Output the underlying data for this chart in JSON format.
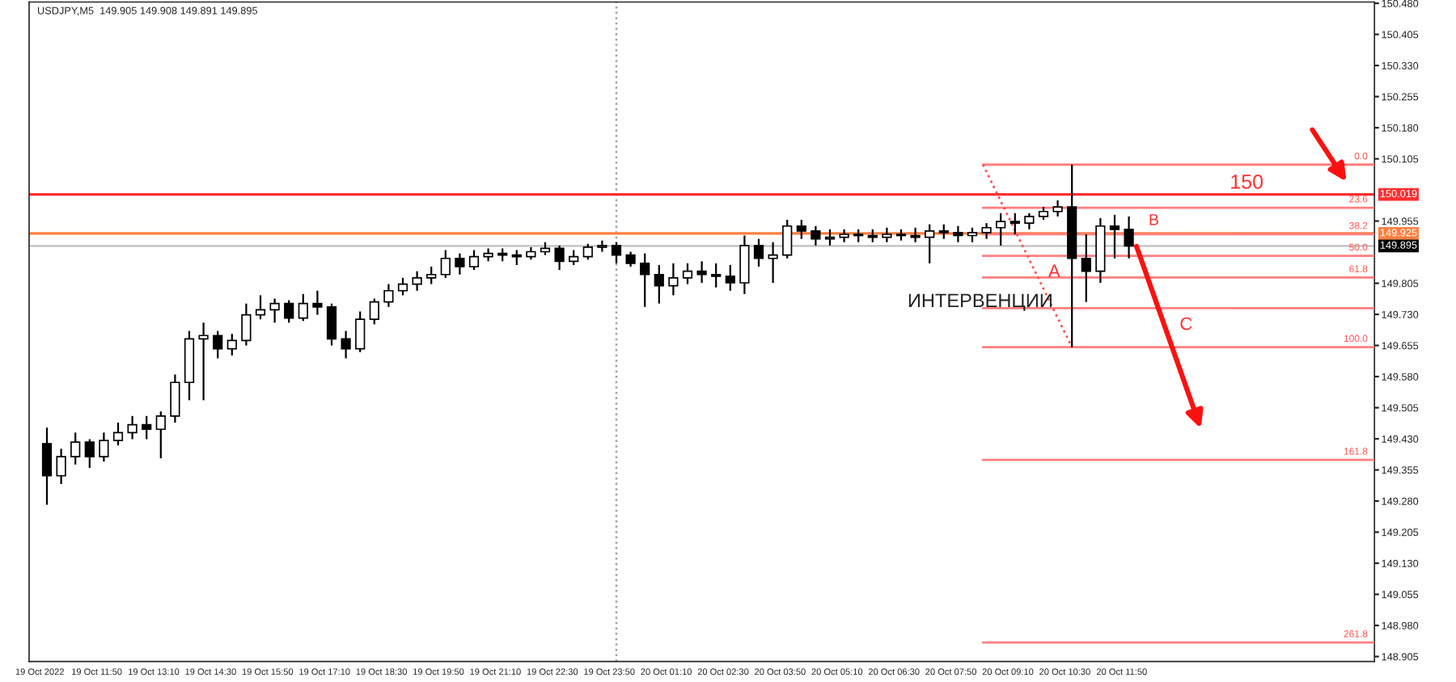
{
  "chart_data": {
    "type": "candlestick",
    "title": "USDJPY,M5  149.905 149.908 149.891 149.895",
    "color": "#000000",
    "x": [
      "2022-10-19T10:40",
      "2022-10-19T11:00",
      "2022-10-19T11:20",
      "2022-10-19T11:40",
      "2022-10-19T12:00",
      "2022-10-19T12:20",
      "2022-10-19T12:40",
      "2022-10-19T13:00",
      "2022-10-19T13:20",
      "2022-10-19T13:40",
      "2022-10-19T14:00",
      "2022-10-19T14:20",
      "2022-10-19T14:40",
      "2022-10-19T15:00",
      "2022-10-19T15:20",
      "2022-10-19T15:40",
      "2022-10-19T16:00",
      "2022-10-19T16:20",
      "2022-10-19T16:40",
      "2022-10-19T17:00",
      "2022-10-19T17:20",
      "2022-10-19T17:40",
      "2022-10-19T18:00",
      "2022-10-19T18:20",
      "2022-10-19T18:40",
      "2022-10-19T19:00",
      "2022-10-19T19:20",
      "2022-10-19T19:40",
      "2022-10-19T20:00",
      "2022-10-19T20:20",
      "2022-10-19T20:40",
      "2022-10-19T21:00",
      "2022-10-19T21:20",
      "2022-10-19T21:40",
      "2022-10-19T22:00",
      "2022-10-19T22:20",
      "2022-10-19T22:40",
      "2022-10-19T23:00",
      "2022-10-19T23:20",
      "2022-10-19T23:40",
      "2022-10-20T00:00",
      "2022-10-20T00:20",
      "2022-10-20T00:40",
      "2022-10-20T01:00",
      "2022-10-20T01:20",
      "2022-10-20T01:40",
      "2022-10-20T02:00",
      "2022-10-20T02:20",
      "2022-10-20T02:40",
      "2022-10-20T03:00",
      "2022-10-20T03:20",
      "2022-10-20T03:40",
      "2022-10-20T04:00",
      "2022-10-20T04:20",
      "2022-10-20T04:40",
      "2022-10-20T05:00",
      "2022-10-20T05:20",
      "2022-10-20T05:40",
      "2022-10-20T06:00",
      "2022-10-20T06:20",
      "2022-10-20T06:40",
      "2022-10-20T07:00",
      "2022-10-20T07:20",
      "2022-10-20T07:40",
      "2022-10-20T08:00",
      "2022-10-20T08:20",
      "2022-10-20T08:40",
      "2022-10-20T09:00",
      "2022-10-20T09:20",
      "2022-10-20T09:40",
      "2022-10-20T10:00",
      "2022-10-20T10:20",
      "2022-10-20T10:40",
      "2022-10-20T11:00",
      "2022-10-20T11:20",
      "2022-10-20T11:40",
      "2022-10-20T12:00"
    ],
    "ohlc": [
      [
        149.418,
        149.457,
        149.271,
        149.341
      ],
      [
        149.341,
        149.406,
        149.321,
        149.387
      ],
      [
        149.387,
        149.445,
        149.368,
        149.422
      ],
      [
        149.422,
        149.429,
        149.36,
        149.387
      ],
      [
        149.387,
        149.445,
        149.375,
        149.426
      ],
      [
        149.426,
        149.469,
        149.414,
        149.445
      ],
      [
        149.445,
        149.485,
        149.429,
        149.464
      ],
      [
        149.464,
        149.485,
        149.429,
        149.453
      ],
      [
        149.453,
        149.496,
        149.383,
        149.485
      ],
      [
        149.485,
        149.585,
        149.469,
        149.566
      ],
      [
        149.566,
        149.69,
        149.523,
        149.671
      ],
      [
        149.671,
        149.71,
        149.523,
        149.679
      ],
      [
        149.679,
        149.69,
        149.624,
        149.647
      ],
      [
        149.647,
        149.683,
        149.631,
        149.667
      ],
      [
        149.667,
        149.756,
        149.655,
        149.729
      ],
      [
        149.729,
        149.776,
        149.718,
        149.741
      ],
      [
        149.741,
        149.768,
        149.71,
        149.756
      ],
      [
        149.756,
        149.764,
        149.71,
        149.721
      ],
      [
        149.721,
        149.779,
        149.714,
        149.756
      ],
      [
        149.756,
        149.787,
        149.729,
        149.748
      ],
      [
        149.748,
        149.756,
        149.655,
        149.671
      ],
      [
        149.671,
        149.69,
        149.624,
        149.647
      ],
      [
        149.647,
        149.737,
        149.639,
        149.718
      ],
      [
        149.718,
        149.768,
        149.706,
        149.76
      ],
      [
        149.76,
        149.803,
        149.748,
        149.787
      ],
      [
        149.787,
        149.818,
        149.776,
        149.803
      ],
      [
        149.803,
        149.834,
        149.787,
        149.818
      ],
      [
        149.818,
        149.845,
        149.803,
        149.826
      ],
      [
        149.826,
        149.885,
        149.818,
        149.865
      ],
      [
        149.865,
        149.877,
        149.826,
        149.845
      ],
      [
        149.845,
        149.885,
        149.837,
        149.869
      ],
      [
        149.869,
        149.889,
        149.858,
        149.877
      ],
      [
        149.877,
        149.889,
        149.858,
        149.873
      ],
      [
        149.873,
        149.885,
        149.849,
        149.869
      ],
      [
        149.869,
        149.892,
        149.862,
        149.881
      ],
      [
        149.881,
        149.904,
        149.873,
        149.889
      ],
      [
        149.889,
        149.896,
        149.837,
        149.858
      ],
      [
        149.858,
        149.885,
        149.849,
        149.869
      ],
      [
        149.869,
        149.9,
        149.862,
        149.892
      ],
      [
        149.892,
        149.908,
        149.881,
        149.896
      ],
      [
        149.896,
        149.904,
        149.853,
        149.873
      ],
      [
        149.873,
        149.881,
        149.845,
        149.853
      ],
      [
        149.853,
        149.877,
        149.748,
        149.826
      ],
      [
        149.826,
        149.849,
        149.756,
        149.799
      ],
      [
        149.799,
        149.853,
        149.776,
        149.818
      ],
      [
        149.818,
        149.853,
        149.803,
        149.834
      ],
      [
        149.834,
        149.858,
        149.806,
        149.826
      ],
      [
        149.826,
        149.853,
        149.795,
        149.822
      ],
      [
        149.822,
        149.849,
        149.787,
        149.806
      ],
      [
        149.806,
        149.92,
        149.779,
        149.896
      ],
      [
        149.896,
        149.912,
        149.845,
        149.865
      ],
      [
        149.865,
        149.904,
        149.806,
        149.873
      ],
      [
        149.873,
        149.958,
        149.865,
        149.943
      ],
      [
        149.943,
        149.958,
        149.912,
        149.931
      ],
      [
        149.931,
        149.943,
        149.896,
        149.912
      ],
      [
        149.912,
        149.935,
        149.896,
        149.916
      ],
      [
        149.916,
        149.935,
        149.904,
        149.923
      ],
      [
        149.923,
        149.935,
        149.904,
        149.92
      ],
      [
        149.92,
        149.935,
        149.904,
        149.916
      ],
      [
        149.916,
        149.939,
        149.904,
        149.923
      ],
      [
        149.923,
        149.935,
        149.908,
        149.92
      ],
      [
        149.92,
        149.939,
        149.904,
        149.916
      ],
      [
        149.916,
        149.947,
        149.853,
        149.931
      ],
      [
        149.931,
        149.947,
        149.912,
        149.927
      ],
      [
        149.927,
        149.943,
        149.904,
        149.92
      ],
      [
        149.92,
        149.939,
        149.904,
        149.927
      ],
      [
        149.927,
        149.95,
        149.912,
        149.939
      ],
      [
        149.939,
        149.974,
        149.896,
        149.954
      ],
      [
        149.954,
        149.974,
        149.923,
        149.95
      ],
      [
        149.95,
        149.974,
        149.935,
        149.966
      ],
      [
        149.966,
        149.989,
        149.958,
        149.978
      ],
      [
        149.978,
        150.005,
        149.966,
        149.989
      ],
      [
        149.989,
        150.091,
        149.651,
        149.865
      ],
      [
        149.865,
        149.923,
        149.76,
        149.834
      ],
      [
        149.834,
        149.962,
        149.806,
        149.943
      ],
      [
        149.943,
        149.97,
        149.865,
        149.935
      ],
      [
        149.935,
        149.966,
        149.865,
        149.895
      ]
    ],
    "series": [
      {
        "type": "line",
        "color": "#ff7f7f",
        "x": [
          "2022-10-20T08:35",
          "2022-10-20T17:45"
        ],
        "values": [
          150.091,
          150.091
        ]
      },
      {
        "type": "line",
        "color": "#ff7f7f",
        "x": [
          "2022-10-20T08:35",
          "2022-10-20T17:45"
        ],
        "values": [
          149.987,
          149.987
        ]
      },
      {
        "type": "line",
        "color": "#ff7f7f",
        "x": [
          "2022-10-20T08:35",
          "2022-10-20T17:45"
        ],
        "values": [
          149.923,
          149.923
        ]
      },
      {
        "type": "line",
        "color": "#ff7f7f",
        "x": [
          "2022-10-20T08:35",
          "2022-10-20T17:45"
        ],
        "values": [
          149.871,
          149.871
        ]
      },
      {
        "type": "line",
        "color": "#ff7f7f",
        "x": [
          "2022-10-20T08:35",
          "2022-10-20T17:45"
        ],
        "values": [
          149.819,
          149.819
        ]
      },
      {
        "type": "line",
        "color": "#ff7f7f",
        "x": [
          "2022-10-20T08:35",
          "2022-10-20T17:45"
        ],
        "values": [
          149.745,
          149.745
        ]
      },
      {
        "type": "line",
        "color": "#ff7f7f",
        "x": [
          "2022-10-20T08:35",
          "2022-10-20T17:45"
        ],
        "values": [
          149.651,
          149.651
        ]
      },
      {
        "type": "line",
        "color": "#ff7f7f",
        "x": [
          "2022-10-20T08:35",
          "2022-10-20T17:45"
        ],
        "values": [
          149.379,
          149.379
        ]
      },
      {
        "type": "line",
        "color": "#ff7f7f",
        "x": [
          "2022-10-20T08:35",
          "2022-10-20T17:45"
        ],
        "values": [
          148.939,
          148.939
        ]
      },
      {
        "type": "line",
        "color": "#ff5050",
        "line_style": "dotted",
        "x": [
          "2022-10-20T08:35",
          "2022-10-20T10:40"
        ],
        "values": [
          150.091,
          149.651
        ]
      }
    ],
    "ref_lines": [
      {
        "axis": "y",
        "value": 150.019,
        "label": "150.019",
        "color": "#ff3030"
      },
      {
        "axis": "y",
        "value": 149.925,
        "label": "149.925",
        "color": "#ff7f40"
      },
      {
        "axis": "y",
        "value": 149.895,
        "label": "149.895",
        "color": "#000000"
      },
      {
        "axis": "x",
        "value": "2022-10-20T00:00",
        "color": "#a0a0a0",
        "line_style": "dotted"
      }
    ],
    "annotations": [
      {
        "text": "0.0",
        "x": "2022-10-20T17:45",
        "y": 150.091
      },
      {
        "text": "23.6",
        "x": "2022-10-20T17:45",
        "y": 149.987
      },
      {
        "text": "38.2",
        "x": "2022-10-20T17:45",
        "y": 149.923
      },
      {
        "text": "50.0",
        "x": "2022-10-20T17:45",
        "y": 149.871
      },
      {
        "text": "61.8",
        "x": "2022-10-20T17:45",
        "y": 149.819
      },
      {
        "text": "100.0",
        "x": "2022-10-20T17:45",
        "y": 149.651
      },
      {
        "text": "161.8",
        "x": "2022-10-20T17:45",
        "y": 149.379
      },
      {
        "text": "261.8",
        "x": "2022-10-20T17:45",
        "y": 148.939
      },
      "150",
      "B",
      "A",
      "C",
      "ИНТЕРВЕНЦИИ"
    ],
    "xlim": [
      "2022-10-19T10:15",
      "2022-10-20T17:45"
    ],
    "xticks": [
      {
        "value": "2022-10-19T10:30",
        "label": "19 Oct 2022"
      },
      {
        "value": "2022-10-19T11:50",
        "label": "19 Oct 11:50"
      },
      {
        "value": "2022-10-19T13:10",
        "label": "19 Oct 13:10"
      },
      {
        "value": "2022-10-19T14:30",
        "label": "19 Oct 14:30"
      },
      {
        "value": "2022-10-19T15:50",
        "label": "19 Oct 15:50"
      },
      {
        "value": "2022-10-19T17:10",
        "label": "19 Oct 17:10"
      },
      {
        "value": "2022-10-19T18:30",
        "label": "19 Oct 18:30"
      },
      {
        "value": "2022-10-19T19:50",
        "label": "19 Oct 19:50"
      },
      {
        "value": "2022-10-19T21:10",
        "label": "19 Oct 21:10"
      },
      {
        "value": "2022-10-19T22:30",
        "label": "19 Oct 22:30"
      },
      {
        "value": "2022-10-19T23:50",
        "label": "19 Oct 23:50"
      },
      {
        "value": "2022-10-20T01:10",
        "label": "20 Oct 01:10"
      },
      {
        "value": "2022-10-20T02:30",
        "label": "20 Oct 02:30"
      },
      {
        "value": "2022-10-20T03:50",
        "label": "20 Oct 03:50"
      },
      {
        "value": "2022-10-20T05:10",
        "label": "20 Oct 05:10"
      },
      {
        "value": "2022-10-20T06:30",
        "label": "20 Oct 06:30"
      },
      {
        "value": "2022-10-20T07:50",
        "label": "20 Oct 07:50"
      },
      {
        "value": "2022-10-20T09:10",
        "label": "20 Oct 09:10"
      },
      {
        "value": "2022-10-20T10:30",
        "label": "20 Oct 10:30"
      },
      {
        "value": "2022-10-20T11:50",
        "label": "20 Oct 11:50"
      }
    ],
    "ylim": [
      148.893,
      150.483
    ],
    "yticks": [
      {
        "value": 150.48,
        "label": "150.480"
      },
      150.405,
      {
        "value": 150.33,
        "label": "150.330"
      },
      150.255,
      {
        "value": 150.18,
        "label": "150.180"
      },
      150.105,
      149.955,
      149.805,
      {
        "value": 149.73,
        "label": "149.730"
      },
      149.655,
      {
        "value": 149.58,
        "label": "149.580"
      },
      149.505,
      {
        "value": 149.43,
        "label": "149.430"
      },
      149.355,
      {
        "value": 149.28,
        "label": "149.280"
      },
      149.205,
      {
        "value": 149.13,
        "label": "149.130"
      },
      149.055,
      {
        "value": 148.98,
        "label": "148.980"
      },
      148.905
    ],
    "grid": false,
    "legend": false
  }
}
